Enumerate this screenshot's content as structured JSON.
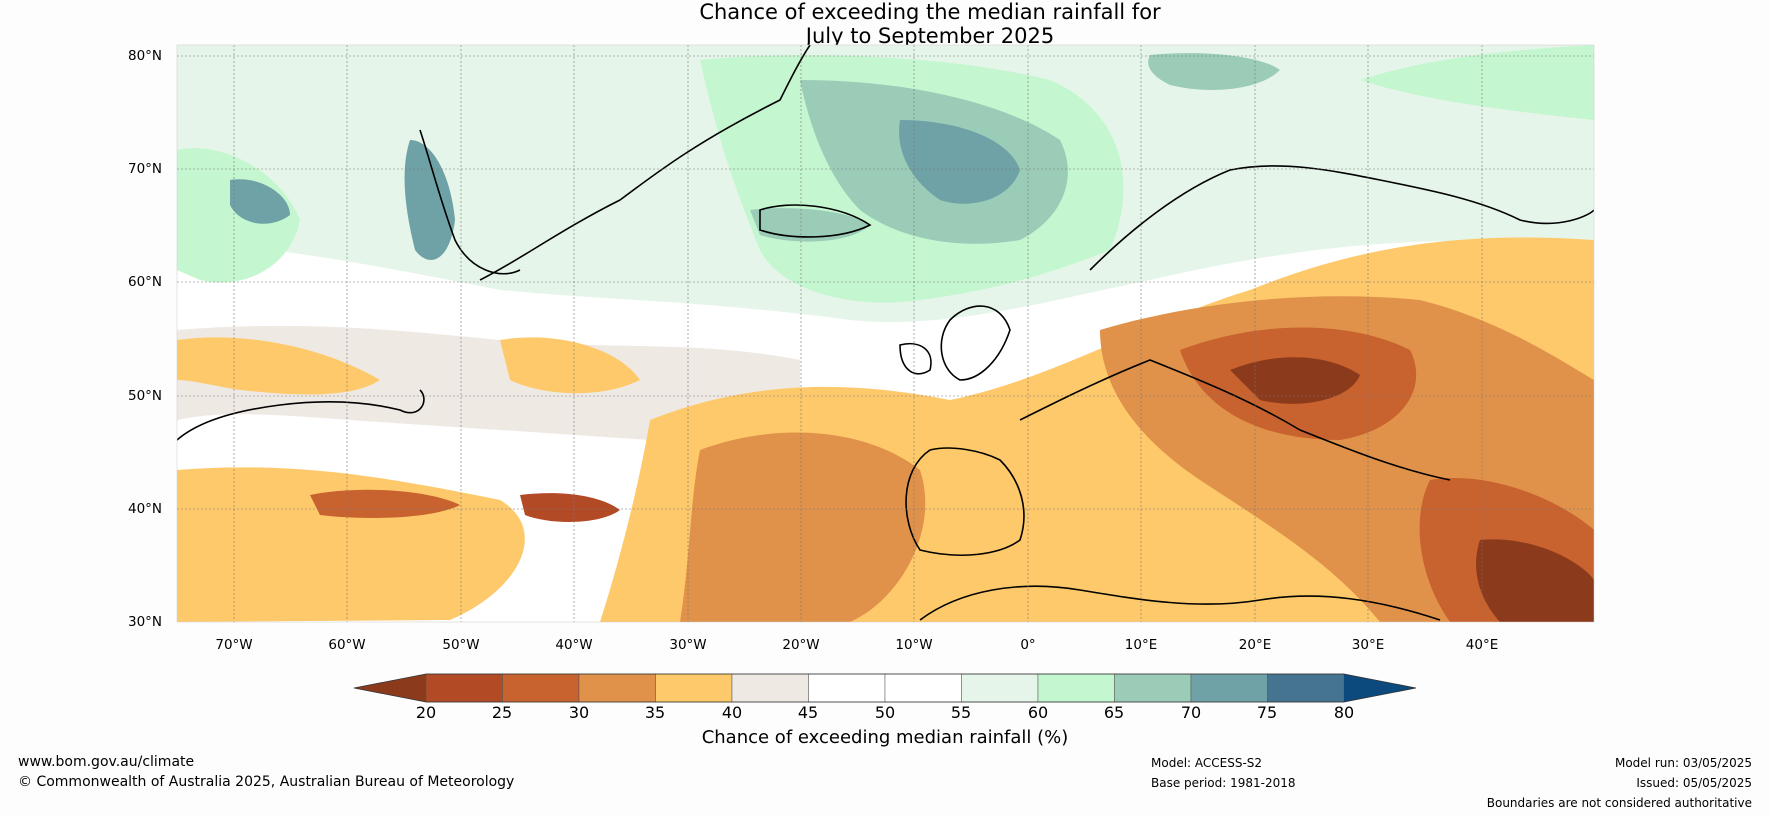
{
  "title": {
    "line1": "Chance of exceeding the median rainfall for",
    "line2": "July to September 2025"
  },
  "axes": {
    "lat_labels": [
      "80°N",
      "70°N",
      "60°N",
      "50°N",
      "40°N",
      "30°N"
    ],
    "lon_labels": [
      "70°W",
      "60°W",
      "50°W",
      "40°W",
      "30°W",
      "20°W",
      "10°W",
      "0°",
      "10°E",
      "20°E",
      "30°E",
      "40°E"
    ],
    "lat_range": [
      30,
      81
    ],
    "lon_range": [
      -75,
      50
    ]
  },
  "colorbar": {
    "label": "Chance of exceeding median rainfall (%)",
    "ticks": [
      "20",
      "25",
      "30",
      "35",
      "40",
      "45",
      "50",
      "55",
      "60",
      "65",
      "70",
      "75",
      "80"
    ],
    "colors": [
      "#8c3a1c",
      "#b24a26",
      "#c8622e",
      "#e0924a",
      "#fec96a",
      "#efe9e4",
      "#ffffff",
      "#ffffff",
      "#e6f5e9",
      "#c4f7d0",
      "#9bccb8",
      "#6fa2a6",
      "#44748f",
      "#0c4a7d"
    ]
  },
  "footer": {
    "website": "www.bom.gov.au/climate",
    "copyright": "© Commonwealth of Australia 2025, Australian Bureau of Meteorology",
    "model": "Model: ACCESS-S2",
    "base_period": "Base period: 1981-2018",
    "model_run": "Model run: 03/05/2025",
    "issued": "Issued: 05/05/2025",
    "disclaimer": "Boundaries are not considered authoritative"
  }
}
